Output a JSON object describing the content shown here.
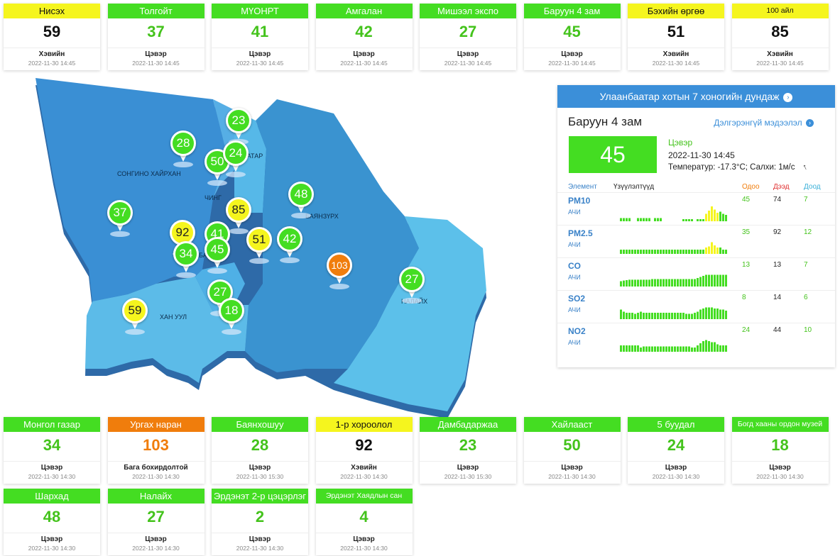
{
  "colors": {
    "good": "#44dd22",
    "moderate": "#f5f51e",
    "unhealthy_sensitive": "#f07d0c",
    "good_text": "#44c31c",
    "moderate_text": "#111111",
    "unhealthy_text": "#f07d0c",
    "accent": "#3b8fd9"
  },
  "top_stations": [
    {
      "name": "Нисэх",
      "value": "59",
      "status": "Хэвийн",
      "time": "2022-11-30 14:45",
      "level": "moderate"
    },
    {
      "name": "Толгойт",
      "value": "37",
      "status": "Цэвэр",
      "time": "2022-11-30 14:45",
      "level": "good"
    },
    {
      "name": "МҮОНРТ",
      "value": "41",
      "status": "Цэвэр",
      "time": "2022-11-30 14:45",
      "level": "good"
    },
    {
      "name": "Амгалан",
      "value": "42",
      "status": "Цэвэр",
      "time": "2022-11-30 14:45",
      "level": "good"
    },
    {
      "name": "Мишээл экспо",
      "value": "27",
      "status": "Цэвэр",
      "time": "2022-11-30 14:45",
      "level": "good"
    },
    {
      "name": "Баруун 4 зам",
      "value": "45",
      "status": "Цэвэр",
      "time": "2022-11-30 14:45",
      "level": "good"
    },
    {
      "name": "Бэхийн өргөө",
      "value": "51",
      "status": "Хэвийн",
      "time": "2022-11-30 14:45",
      "level": "moderate"
    },
    {
      "name": "100 айл",
      "value": "85",
      "status": "Хэвийн",
      "time": "2022-11-30 14:45",
      "level": "moderate",
      "small": true
    }
  ],
  "bottom_stations": [
    {
      "name": "Монгол газар",
      "value": "34",
      "status": "Цэвэр",
      "time": "2022-11-30 14:30",
      "level": "good"
    },
    {
      "name": "Ургах наран",
      "value": "103",
      "status": "Бага бохирдолтой",
      "time": "2022-11-30 14:30",
      "level": "unhealthy_sensitive"
    },
    {
      "name": "Баянхошуу",
      "value": "28",
      "status": "Цэвэр",
      "time": "2022-11-30 15:30",
      "level": "good"
    },
    {
      "name": "1-р хороолол",
      "value": "92",
      "status": "Хэвийн",
      "time": "2022-11-30 14:30",
      "level": "moderate"
    },
    {
      "name": "Дамбадаржаа",
      "value": "23",
      "status": "Цэвэр",
      "time": "2022-11-30 15:30",
      "level": "good"
    },
    {
      "name": "Хайлааст",
      "value": "50",
      "status": "Цэвэр",
      "time": "2022-11-30 14:30",
      "level": "good"
    },
    {
      "name": "5 буудал",
      "value": "24",
      "status": "Цэвэр",
      "time": "2022-11-30 14:30",
      "level": "good"
    },
    {
      "name": "Богд хааны ордон музей",
      "value": "18",
      "status": "Цэвэр",
      "time": "2022-11-30 14:30",
      "level": "good",
      "small": true
    },
    {
      "name": "Шархад",
      "value": "48",
      "status": "Цэвэр",
      "time": "2022-11-30 14:30",
      "level": "good"
    },
    {
      "name": "Налайх",
      "value": "27",
      "status": "Цэвэр",
      "time": "2022-11-30 14:30",
      "level": "good"
    },
    {
      "name": "Эрдэнэт 2-р цэцэрлэг",
      "value": "2",
      "status": "Цэвэр",
      "time": "2022-11-30 14:30",
      "level": "good"
    },
    {
      "name": "Эрдэнэт Хаядлын сан",
      "value": "4",
      "status": "Цэвэр",
      "time": "2022-11-30 14:30",
      "level": "good",
      "small": true
    }
  ],
  "map": {
    "district_labels": [
      "СОНГИНО ХАЙРХАН",
      "ЧИНГ",
      "БААТАР",
      "БАЯНЗҮРХ",
      "БАЯН ОЛ",
      "ХАН УУЛ",
      "НАЛАЙХ"
    ],
    "markers": [
      {
        "value": "23",
        "level": "good"
      },
      {
        "value": "28",
        "level": "good"
      },
      {
        "value": "50",
        "level": "good"
      },
      {
        "value": "24",
        "level": "good"
      },
      {
        "value": "48",
        "level": "good"
      },
      {
        "value": "37",
        "level": "good"
      },
      {
        "value": "85",
        "level": "moderate"
      },
      {
        "value": "92",
        "level": "moderate"
      },
      {
        "value": "41",
        "level": "good"
      },
      {
        "value": "51",
        "level": "moderate"
      },
      {
        "value": "42",
        "level": "good"
      },
      {
        "value": "34",
        "level": "good"
      },
      {
        "value": "45",
        "level": "good"
      },
      {
        "value": "103",
        "level": "unhealthy_sensitive"
      },
      {
        "value": "27",
        "level": "good"
      },
      {
        "value": "27",
        "level": "good"
      },
      {
        "value": "59",
        "level": "moderate"
      },
      {
        "value": "18",
        "level": "good"
      }
    ]
  },
  "panel": {
    "header": "Улаанбаатар хотын 7 хоногийн дундаж",
    "header_icon": "chevron-circle-right-icon",
    "station": "Баруун 4 зам",
    "more_link": "Дэлгэрэнгүй мэдээлэл",
    "value": "45",
    "status": "Цэвэр",
    "time": "2022-11-30 14:45",
    "weather": "Температур: -17.3°C; Салхи: 1м/с",
    "wind_icon": "wind-direction-icon",
    "col_element": "Элемент",
    "col_trends": "Үзүүлэлтүүд",
    "col_now": "Одоо",
    "col_max": "Дээд",
    "col_min": "Доод",
    "pollutants": [
      {
        "name": "PM10",
        "unit": "АЧИ",
        "now": "45",
        "max": "74",
        "min": "7",
        "bars": [
          0.15,
          0.15,
          0.15,
          0.15,
          0,
          0,
          0.15,
          0.15,
          0.15,
          0.15,
          0.15,
          0,
          0.15,
          0.15,
          0.15,
          0,
          0,
          0,
          0,
          0,
          0,
          0,
          0.1,
          0.1,
          0.1,
          0.1,
          0,
          0.1,
          0.1,
          0.1,
          0.35,
          0.5,
          0.7,
          0.55,
          0.4,
          0.45,
          0.35,
          0.3
        ],
        "highlight": [
          30,
          31,
          32,
          33,
          34
        ]
      },
      {
        "name": "PM2.5",
        "unit": "АЧИ",
        "now": "35",
        "max": "92",
        "min": "12",
        "bars": [
          0.2,
          0.2,
          0.2,
          0.2,
          0.2,
          0.2,
          0.2,
          0.2,
          0.2,
          0.2,
          0.2,
          0.2,
          0.2,
          0.2,
          0.2,
          0.2,
          0.2,
          0.2,
          0.2,
          0.2,
          0.2,
          0.2,
          0.2,
          0.2,
          0.2,
          0.2,
          0.2,
          0.2,
          0.2,
          0.2,
          0.3,
          0.35,
          0.55,
          0.4,
          0.3,
          0.3,
          0.2,
          0.2
        ],
        "highlight": [
          30,
          31,
          32,
          33,
          34
        ]
      },
      {
        "name": "CO",
        "unit": "АЧИ",
        "now": "13",
        "max": "13",
        "min": "7",
        "bars": [
          0.25,
          0.28,
          0.3,
          0.32,
          0.32,
          0.32,
          0.32,
          0.32,
          0.32,
          0.32,
          0.32,
          0.35,
          0.35,
          0.35,
          0.35,
          0.35,
          0.35,
          0.35,
          0.35,
          0.35,
          0.35,
          0.35,
          0.35,
          0.35,
          0.35,
          0.35,
          0.35,
          0.4,
          0.45,
          0.5,
          0.55,
          0.55,
          0.55,
          0.55,
          0.55,
          0.55,
          0.55,
          0.55
        ],
        "highlight": []
      },
      {
        "name": "SO2",
        "unit": "АЧИ",
        "now": "8",
        "max": "14",
        "min": "6",
        "bars": [
          0.45,
          0.35,
          0.3,
          0.3,
          0.3,
          0.25,
          0.3,
          0.35,
          0.3,
          0.3,
          0.3,
          0.3,
          0.3,
          0.3,
          0.3,
          0.3,
          0.3,
          0.3,
          0.3,
          0.3,
          0.3,
          0.3,
          0.3,
          0.25,
          0.25,
          0.25,
          0.3,
          0.35,
          0.45,
          0.5,
          0.55,
          0.55,
          0.55,
          0.5,
          0.5,
          0.45,
          0.45,
          0.4
        ],
        "highlight": []
      },
      {
        "name": "NO2",
        "unit": "АЧИ",
        "now": "24",
        "max": "44",
        "min": "10",
        "bars": [
          0.3,
          0.3,
          0.3,
          0.3,
          0.3,
          0.3,
          0.3,
          0.2,
          0.25,
          0.25,
          0.25,
          0.25,
          0.25,
          0.25,
          0.25,
          0.25,
          0.25,
          0.25,
          0.25,
          0.25,
          0.25,
          0.25,
          0.25,
          0.25,
          0.25,
          0.2,
          0.2,
          0.3,
          0.4,
          0.5,
          0.55,
          0.5,
          0.45,
          0.45,
          0.35,
          0.3,
          0.3,
          0.3
        ],
        "highlight": []
      }
    ]
  }
}
